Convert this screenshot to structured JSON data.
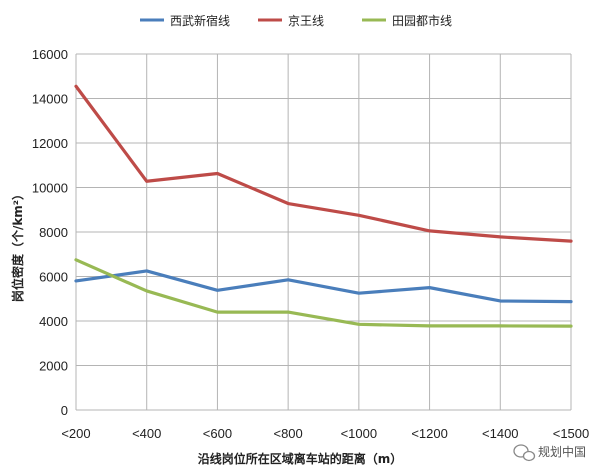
{
  "chart_data": {
    "type": "line",
    "title": "",
    "categories": [
      "<200",
      "<400",
      "<600",
      "<800",
      "<1000",
      "<1200",
      "<1400",
      "<1500"
    ],
    "series": [
      {
        "name": "西武新宿线",
        "color": "#4a7ebb",
        "values": [
          5800,
          6250,
          5380,
          5850,
          5250,
          5500,
          4900,
          4870
        ]
      },
      {
        "name": "京王线",
        "color": "#be4b48",
        "values": [
          14550,
          10280,
          10630,
          9280,
          8750,
          8050,
          7780,
          7590
        ]
      },
      {
        "name": "田园都市线",
        "color": "#98b954",
        "values": [
          6750,
          5350,
          4400,
          4400,
          3850,
          3780,
          3780,
          3770
        ]
      }
    ],
    "xlabel": "沿线岗位所在区域离车站的距离（m）",
    "ylabel": "岗位密度（个/km²）",
    "ylim": [
      0,
      16000
    ],
    "yticks": [
      0,
      2000,
      4000,
      6000,
      8000,
      10000,
      12000,
      14000,
      16000
    ],
    "grid": true,
    "legend_position": "top"
  },
  "watermark": {
    "text": "规划中国",
    "icon": "wechat-icon"
  }
}
